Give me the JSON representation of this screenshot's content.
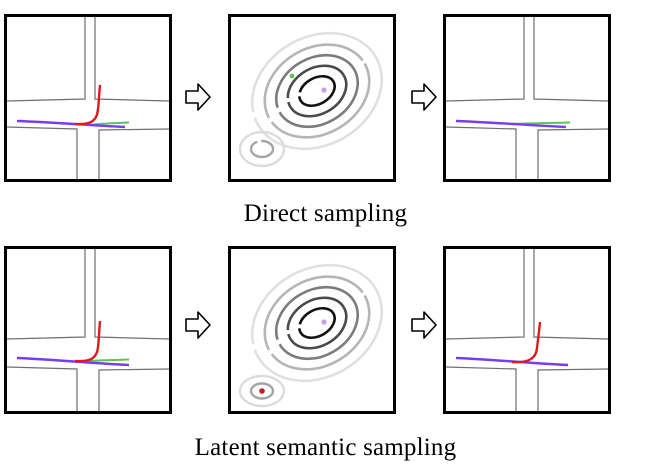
{
  "captions": {
    "top": "Direct sampling",
    "bottom": "Latent semantic sampling"
  },
  "icons": {
    "flow_arrow": "right-hollow-arrow-icon"
  },
  "colors": {
    "ego_trajectory": "#7a3cf0",
    "turn_trajectory": "#e0191e",
    "straight_trajectory": "#5cc35c",
    "road_edge": "#6f6f6f",
    "sample_point_direct": "#5cc35c",
    "sample_point_latent": "#c62020",
    "mode_center": "#c9a0e6"
  }
}
